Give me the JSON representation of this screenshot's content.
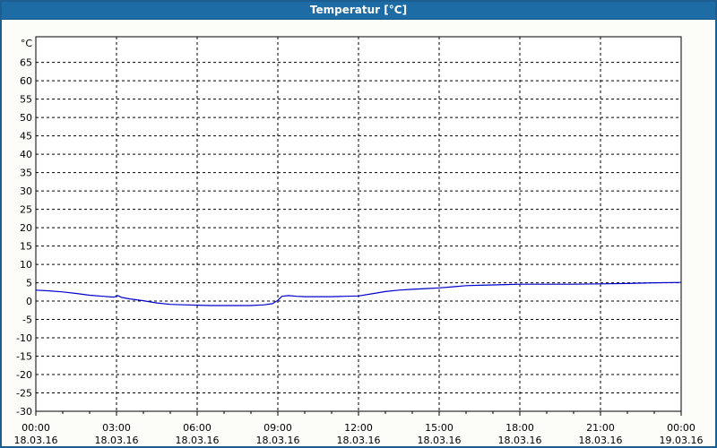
{
  "window": {
    "title": "Temperatur [°C]"
  },
  "colors": {
    "titlebar_bg": "#1e6ca6",
    "window_border": "#1c5e90",
    "content_bg": "#fcfdf8",
    "plot_bg": "#ffffff",
    "grid_color": "#000000",
    "axis_color": "#000000",
    "series_color": "#0000cc",
    "title_text": "#ffffff",
    "label_text": "#000000"
  },
  "chart_data": {
    "type": "line",
    "title": "Temperatur [°C]",
    "ylabel_unit": "°C",
    "xlabel": "",
    "xlim": [
      0,
      24
    ],
    "ylim": [
      -30,
      72
    ],
    "grid": "dashed black; horizontal every 5 °C, vertical every 3 h; minor hourly ticks on bottom axis",
    "legend_position": "none",
    "y_ticks": [
      65,
      60,
      55,
      50,
      45,
      40,
      35,
      30,
      25,
      20,
      15,
      10,
      5,
      0,
      -5,
      -10,
      -15,
      -20,
      -25,
      -30
    ],
    "x_ticks": [
      {
        "hour": 0,
        "time": "00:00",
        "date": "18.03.16"
      },
      {
        "hour": 3,
        "time": "03:00",
        "date": "18.03.16"
      },
      {
        "hour": 6,
        "time": "06:00",
        "date": "18.03.16"
      },
      {
        "hour": 9,
        "time": "09:00",
        "date": "18.03.16"
      },
      {
        "hour": 12,
        "time": "12:00",
        "date": "18.03.16"
      },
      {
        "hour": 15,
        "time": "15:00",
        "date": "18.03.16"
      },
      {
        "hour": 18,
        "time": "18:00",
        "date": "18.03.16"
      },
      {
        "hour": 21,
        "time": "21:00",
        "date": "18.03.16"
      },
      {
        "hour": 24,
        "time": "00:00",
        "date": "19.03.16"
      }
    ],
    "series": [
      {
        "name": "Temperatur",
        "color": "#0000cc",
        "points": [
          [
            0,
            3.0
          ],
          [
            0.5,
            2.8
          ],
          [
            1,
            2.5
          ],
          [
            1.5,
            2.1
          ],
          [
            2,
            1.6
          ],
          [
            2.5,
            1.3
          ],
          [
            2.9,
            1.1
          ],
          [
            3.05,
            1.5
          ],
          [
            3.2,
            1.0
          ],
          [
            3.5,
            0.6
          ],
          [
            4,
            0.1
          ],
          [
            4.5,
            -0.5
          ],
          [
            5,
            -0.9
          ],
          [
            5.5,
            -1.0
          ],
          [
            6,
            -1.1
          ],
          [
            6.5,
            -1.2
          ],
          [
            7,
            -1.2
          ],
          [
            7.5,
            -1.2
          ],
          [
            8,
            -1.2
          ],
          [
            8.5,
            -1.0
          ],
          [
            8.8,
            -0.7
          ],
          [
            9,
            0.2
          ],
          [
            9.15,
            1.3
          ],
          [
            9.4,
            1.5
          ],
          [
            9.7,
            1.3
          ],
          [
            10,
            1.2
          ],
          [
            10.5,
            1.2
          ],
          [
            11,
            1.2
          ],
          [
            11.5,
            1.3
          ],
          [
            12,
            1.4
          ],
          [
            12.5,
            2.0
          ],
          [
            13,
            2.6
          ],
          [
            13.5,
            3.0
          ],
          [
            14,
            3.2
          ],
          [
            14.5,
            3.4
          ],
          [
            15,
            3.6
          ],
          [
            15.5,
            3.9
          ],
          [
            16,
            4.2
          ],
          [
            16.5,
            4.3
          ],
          [
            17,
            4.4
          ],
          [
            17.5,
            4.5
          ],
          [
            18,
            4.6
          ],
          [
            19,
            4.6
          ],
          [
            20,
            4.6
          ],
          [
            21,
            4.7
          ],
          [
            22,
            4.8
          ],
          [
            23,
            5.0
          ],
          [
            24,
            5.1
          ]
        ]
      }
    ]
  }
}
